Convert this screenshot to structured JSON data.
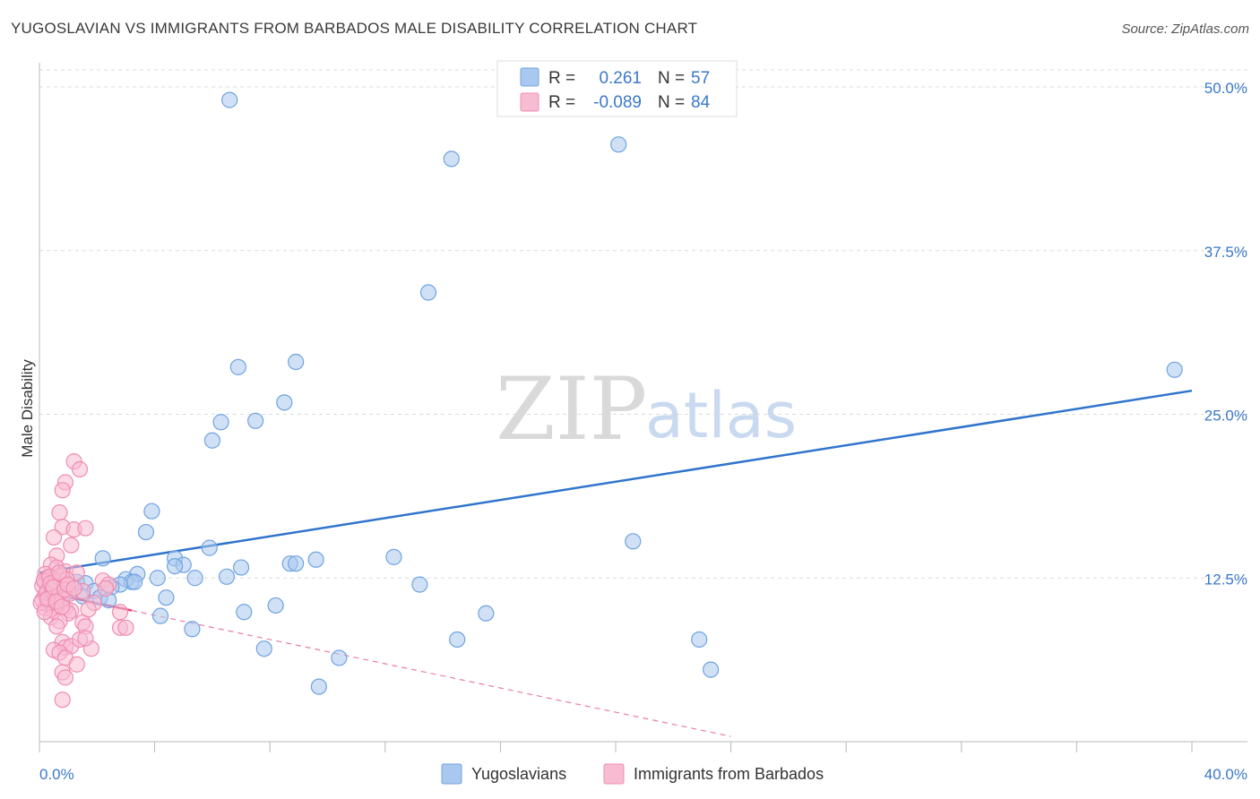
{
  "title": "YUGOSLAVIAN VS IMMIGRANTS FROM BARBADOS MALE DISABILITY CORRELATION CHART",
  "source": "Source: ZipAtlas.com",
  "watermark": {
    "zip": "ZIP",
    "atlas": "atlas"
  },
  "chart_data": {
    "type": "scatter",
    "xlabel": "",
    "ylabel": "Male Disability",
    "xlim": [
      0,
      40
    ],
    "ylim": [
      0,
      52
    ],
    "x_tick_labels": {
      "min": "0.0%",
      "max": "40.0%"
    },
    "y_ticks": [
      {
        "value": 12.5,
        "label": "12.5%"
      },
      {
        "value": 25.0,
        "label": "25.0%"
      },
      {
        "value": 37.5,
        "label": "37.5%"
      },
      {
        "value": 50.0,
        "label": "50.0%"
      }
    ],
    "grid": true,
    "legend": {
      "placement": "top-center",
      "rows": [
        {
          "r_label": "R =",
          "r": "0.261",
          "n_label": "N =",
          "n": "57"
        },
        {
          "r_label": "R =",
          "r": "-0.089",
          "n_label": "N =",
          "n": "84"
        }
      ]
    },
    "series": [
      {
        "name": "Yugoslavians",
        "color": "#6fa3e0",
        "fill": "#a9c8ef",
        "trend": {
          "x0": 0,
          "y0": 12.9,
          "x1": 40,
          "y1": 26.8,
          "color": "#2f74cc"
        },
        "points": [
          [
            6.6,
            49.0
          ],
          [
            14.3,
            44.5
          ],
          [
            20.1,
            45.6
          ],
          [
            13.5,
            34.3
          ],
          [
            6.9,
            28.6
          ],
          [
            8.9,
            29.0
          ],
          [
            8.5,
            25.9
          ],
          [
            6.3,
            24.4
          ],
          [
            7.5,
            24.5
          ],
          [
            6.0,
            23.0
          ],
          [
            39.4,
            28.4
          ],
          [
            3.9,
            17.6
          ],
          [
            3.7,
            16.0
          ],
          [
            20.6,
            15.3
          ],
          [
            5.9,
            14.8
          ],
          [
            2.2,
            14.0
          ],
          [
            4.7,
            14.0
          ],
          [
            5.0,
            13.5
          ],
          [
            7.0,
            13.3
          ],
          [
            8.7,
            13.6
          ],
          [
            9.6,
            13.9
          ],
          [
            12.3,
            14.1
          ],
          [
            8.9,
            13.6
          ],
          [
            3.4,
            12.8
          ],
          [
            3.0,
            12.4
          ],
          [
            3.2,
            12.2
          ],
          [
            2.8,
            12.0
          ],
          [
            3.3,
            12.2
          ],
          [
            4.1,
            12.5
          ],
          [
            4.7,
            13.4
          ],
          [
            5.4,
            12.5
          ],
          [
            6.5,
            12.6
          ],
          [
            1.3,
            12.2
          ],
          [
            1.6,
            12.1
          ],
          [
            2.5,
            11.8
          ],
          [
            1.9,
            11.5
          ],
          [
            1.5,
            11.1
          ],
          [
            2.1,
            11.0
          ],
          [
            2.4,
            10.8
          ],
          [
            4.4,
            11.0
          ],
          [
            13.2,
            12.0
          ],
          [
            8.2,
            10.4
          ],
          [
            7.1,
            9.9
          ],
          [
            15.5,
            9.8
          ],
          [
            0.9,
            11.3
          ],
          [
            4.2,
            9.6
          ],
          [
            5.3,
            8.6
          ],
          [
            14.5,
            7.8
          ],
          [
            22.9,
            7.8
          ],
          [
            7.8,
            7.1
          ],
          [
            10.4,
            6.4
          ],
          [
            23.3,
            5.5
          ],
          [
            9.7,
            4.2
          ],
          [
            0.4,
            12.0
          ],
          [
            0.6,
            11.7
          ],
          [
            0.8,
            11.2
          ],
          [
            0.3,
            11.5
          ]
        ]
      },
      {
        "name": "Immigrants from Barbados",
        "color": "#f08cb0",
        "fill": "#f7bcd1",
        "trend": {
          "x0": 0,
          "y0": 11.5,
          "x1": 24,
          "y1": 0.4,
          "solid_until": 3.2,
          "color": "#e2457f"
        },
        "points": [
          [
            1.2,
            21.4
          ],
          [
            1.4,
            20.8
          ],
          [
            0.9,
            19.8
          ],
          [
            0.8,
            19.2
          ],
          [
            0.7,
            17.5
          ],
          [
            0.8,
            16.4
          ],
          [
            1.2,
            16.2
          ],
          [
            1.6,
            16.3
          ],
          [
            0.5,
            15.6
          ],
          [
            1.1,
            15.0
          ],
          [
            0.6,
            14.2
          ],
          [
            0.4,
            13.5
          ],
          [
            0.6,
            13.3
          ],
          [
            0.9,
            13.0
          ],
          [
            1.3,
            12.9
          ],
          [
            0.2,
            12.8
          ],
          [
            0.3,
            12.5
          ],
          [
            0.5,
            12.4
          ],
          [
            0.2,
            12.2
          ],
          [
            0.4,
            12.0
          ],
          [
            0.6,
            11.8
          ],
          [
            0.3,
            11.7
          ],
          [
            0.7,
            11.5
          ],
          [
            0.5,
            11.3
          ],
          [
            0.2,
            11.2
          ],
          [
            0.4,
            11.0
          ],
          [
            0.8,
            10.9
          ],
          [
            0.1,
            10.8
          ],
          [
            0.3,
            10.5
          ],
          [
            0.6,
            10.4
          ],
          [
            0.2,
            10.2
          ],
          [
            0.5,
            10.0
          ],
          [
            0.9,
            10.2
          ],
          [
            1.1,
            10.0
          ],
          [
            1.0,
            9.8
          ],
          [
            0.4,
            9.5
          ],
          [
            0.7,
            9.2
          ],
          [
            1.5,
            9.1
          ],
          [
            1.6,
            8.8
          ],
          [
            0.6,
            8.8
          ],
          [
            2.2,
            12.3
          ],
          [
            2.4,
            12.0
          ],
          [
            2.3,
            11.7
          ],
          [
            2.8,
            9.9
          ],
          [
            2.8,
            8.7
          ],
          [
            3.0,
            8.7
          ],
          [
            0.8,
            7.6
          ],
          [
            0.9,
            7.2
          ],
          [
            1.1,
            7.3
          ],
          [
            1.4,
            7.8
          ],
          [
            1.8,
            7.1
          ],
          [
            1.6,
            7.9
          ],
          [
            0.5,
            7.0
          ],
          [
            0.7,
            6.8
          ],
          [
            0.9,
            6.4
          ],
          [
            1.3,
            5.9
          ],
          [
            0.8,
            5.3
          ],
          [
            0.9,
            4.9
          ],
          [
            0.8,
            3.2
          ],
          [
            0.1,
            11.9
          ],
          [
            0.15,
            12.3
          ],
          [
            0.25,
            11.4
          ],
          [
            0.35,
            12.6
          ],
          [
            0.45,
            11.6
          ],
          [
            0.55,
            12.2
          ],
          [
            0.65,
            11.1
          ],
          [
            0.75,
            12.7
          ],
          [
            0.85,
            11.9
          ],
          [
            0.95,
            12.4
          ],
          [
            1.05,
            11.3
          ],
          [
            0.05,
            10.6
          ],
          [
            0.18,
            9.9
          ],
          [
            0.28,
            10.9
          ],
          [
            0.38,
            12.1
          ],
          [
            0.48,
            11.8
          ],
          [
            0.58,
            10.7
          ],
          [
            0.68,
            12.9
          ],
          [
            0.78,
            10.3
          ],
          [
            0.88,
            11.6
          ],
          [
            0.98,
            12.0
          ],
          [
            1.5,
            11.5
          ],
          [
            1.9,
            10.6
          ],
          [
            1.2,
            11.7
          ],
          [
            1.7,
            10.1
          ]
        ]
      }
    ]
  }
}
